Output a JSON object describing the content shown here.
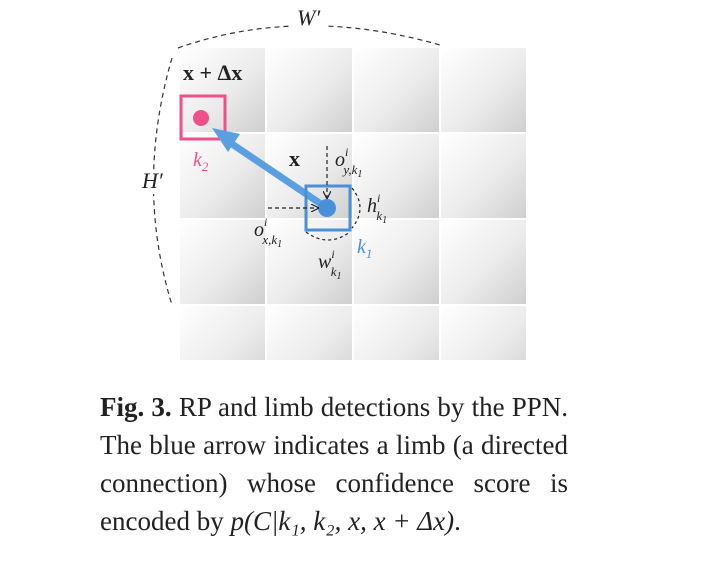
{
  "diagram": {
    "width_label": "W′",
    "height_label": "H′",
    "target_point_label": "x + Δx",
    "k2_label": "k",
    "k2_sub": "2",
    "x_label": "x",
    "k1_label": "k",
    "k1_sub": "1",
    "offset_y_label": "o",
    "offset_y_sup": "i",
    "offset_y_sub": "y,k",
    "offset_y_subsub": "1",
    "offset_x_label": "o",
    "offset_x_sup": "i",
    "offset_x_sub": "x,k",
    "offset_x_subsub": "1",
    "h_label": "h",
    "h_sup": "i",
    "h_sub": "k",
    "h_subsub": "1",
    "w_label": "w",
    "w_sup": "i",
    "w_sub": "k",
    "w_subsub": "1",
    "colors": {
      "pink": "#f0508a",
      "blue": "#4a90d9",
      "arrow": "#5aa0e0",
      "text": "#222222",
      "k1_text": "#4a90d9",
      "k2_text": "#f0508a"
    }
  },
  "caption": {
    "fig_label": "Fig. 3.",
    "text": " RP and limb detections by the PPN. The blue arrow indicates a limb (a directed connection) whose confidence score is encoded by ",
    "formula": "p(C|k₁, k₂, x, x + Δx)",
    "end": "."
  }
}
